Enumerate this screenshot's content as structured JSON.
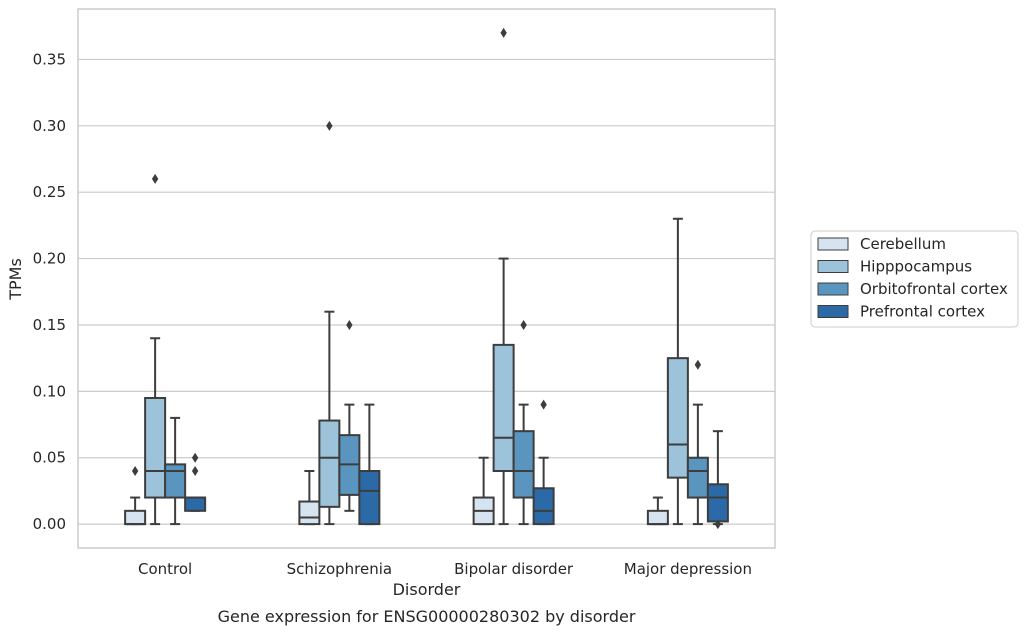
{
  "chart_data": {
    "type": "box",
    "title": "",
    "caption": "Gene expression for ENSG00000280302 by disorder",
    "xlabel": "Disorder",
    "ylabel": "TPMs",
    "ylim": [
      -0.018,
      0.388
    ],
    "yticks": [
      0.0,
      0.05,
      0.1,
      0.15,
      0.2,
      0.25,
      0.3,
      0.35
    ],
    "ytick_labels": [
      "0.00",
      "0.05",
      "0.10",
      "0.15",
      "0.20",
      "0.25",
      "0.30",
      "0.35"
    ],
    "grid": "horizontal",
    "legend_placement": "right",
    "categories": [
      "Control",
      "Schizophrenia",
      "Bipolar disorder",
      "Major depression"
    ],
    "series": [
      {
        "name": "Cerebellum",
        "color": "#d6e3f0",
        "boxes": [
          {
            "whislo": 0.0,
            "q1": 0.0,
            "med": 0.0,
            "q3": 0.01,
            "whishi": 0.02,
            "fliers": [
              0.04
            ]
          },
          {
            "whislo": 0.0,
            "q1": 0.0,
            "med": 0.005,
            "q3": 0.017,
            "whishi": 0.04,
            "fliers": []
          },
          {
            "whislo": 0.0,
            "q1": 0.0,
            "med": 0.01,
            "q3": 0.02,
            "whishi": 0.05,
            "fliers": []
          },
          {
            "whislo": 0.0,
            "q1": 0.0,
            "med": 0.0,
            "q3": 0.01,
            "whishi": 0.02,
            "fliers": []
          }
        ]
      },
      {
        "name": "Hipppocampus",
        "color": "#9cc3da",
        "boxes": [
          {
            "whislo": 0.0,
            "q1": 0.02,
            "med": 0.04,
            "q3": 0.095,
            "whishi": 0.14,
            "fliers": [
              0.26
            ]
          },
          {
            "whislo": 0.0,
            "q1": 0.013,
            "med": 0.05,
            "q3": 0.078,
            "whishi": 0.16,
            "fliers": [
              0.3
            ]
          },
          {
            "whislo": 0.0,
            "q1": 0.04,
            "med": 0.065,
            "q3": 0.135,
            "whishi": 0.2,
            "fliers": [
              0.37
            ]
          },
          {
            "whislo": 0.0,
            "q1": 0.035,
            "med": 0.06,
            "q3": 0.125,
            "whishi": 0.23,
            "fliers": []
          }
        ]
      },
      {
        "name": "Orbitofrontal cortex",
        "color": "#5a95c0",
        "boxes": [
          {
            "whislo": 0.0,
            "q1": 0.02,
            "med": 0.04,
            "q3": 0.045,
            "whishi": 0.08,
            "fliers": []
          },
          {
            "whislo": 0.01,
            "q1": 0.022,
            "med": 0.045,
            "q3": 0.067,
            "whishi": 0.09,
            "fliers": [
              0.15
            ]
          },
          {
            "whislo": 0.0,
            "q1": 0.02,
            "med": 0.04,
            "q3": 0.07,
            "whishi": 0.09,
            "fliers": [
              0.15
            ]
          },
          {
            "whislo": 0.0,
            "q1": 0.02,
            "med": 0.04,
            "q3": 0.05,
            "whishi": 0.09,
            "fliers": [
              0.12
            ]
          }
        ]
      },
      {
        "name": "Prefrontal cortex",
        "color": "#2b6aa6",
        "boxes": [
          {
            "whislo": 0.01,
            "q1": 0.01,
            "med": 0.02,
            "q3": 0.02,
            "whishi": 0.02,
            "fliers": [
              0.04,
              0.05
            ]
          },
          {
            "whislo": 0.0,
            "q1": 0.0,
            "med": 0.025,
            "q3": 0.04,
            "whishi": 0.09,
            "fliers": []
          },
          {
            "whislo": 0.0,
            "q1": 0.0,
            "med": 0.01,
            "q3": 0.027,
            "whishi": 0.05,
            "fliers": [
              0.09
            ]
          },
          {
            "whislo": 0.0,
            "q1": 0.002,
            "med": 0.02,
            "q3": 0.03,
            "whishi": 0.07,
            "fliers": [
              0.0
            ]
          }
        ]
      }
    ]
  }
}
